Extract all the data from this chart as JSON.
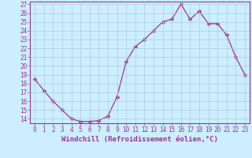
{
  "x": [
    0,
    1,
    2,
    3,
    4,
    5,
    6,
    7,
    8,
    9,
    10,
    11,
    12,
    13,
    14,
    15,
    16,
    17,
    18,
    19,
    20,
    21,
    22,
    23
  ],
  "y": [
    18.5,
    17.2,
    16.0,
    15.0,
    14.0,
    13.7,
    13.7,
    13.8,
    14.3,
    16.5,
    20.5,
    22.2,
    23.0,
    24.0,
    25.0,
    25.3,
    27.0,
    25.3,
    26.2,
    24.8,
    24.8,
    23.5,
    21.0,
    19.0
  ],
  "line_color": "#993399",
  "marker": "D",
  "marker_size": 2.5,
  "bg_color": "#cceeff",
  "grid_color": "#aaccdd",
  "xlabel": "Windchill (Refroidissement éolien,°C)",
  "ylim_min": 13.5,
  "ylim_max": 27.3,
  "xlim_min": -0.5,
  "xlim_max": 23.5,
  "yticks": [
    14,
    15,
    16,
    17,
    18,
    19,
    20,
    21,
    22,
    23,
    24,
    25,
    26,
    27
  ],
  "xticks": [
    0,
    1,
    2,
    3,
    4,
    5,
    6,
    7,
    8,
    9,
    10,
    11,
    12,
    13,
    14,
    15,
    16,
    17,
    18,
    19,
    20,
    21,
    22,
    23
  ],
  "tick_color": "#993399",
  "tick_fontsize": 5.5,
  "xlabel_fontsize": 6.5,
  "label_color": "#993399",
  "spine_color": "#993399"
}
